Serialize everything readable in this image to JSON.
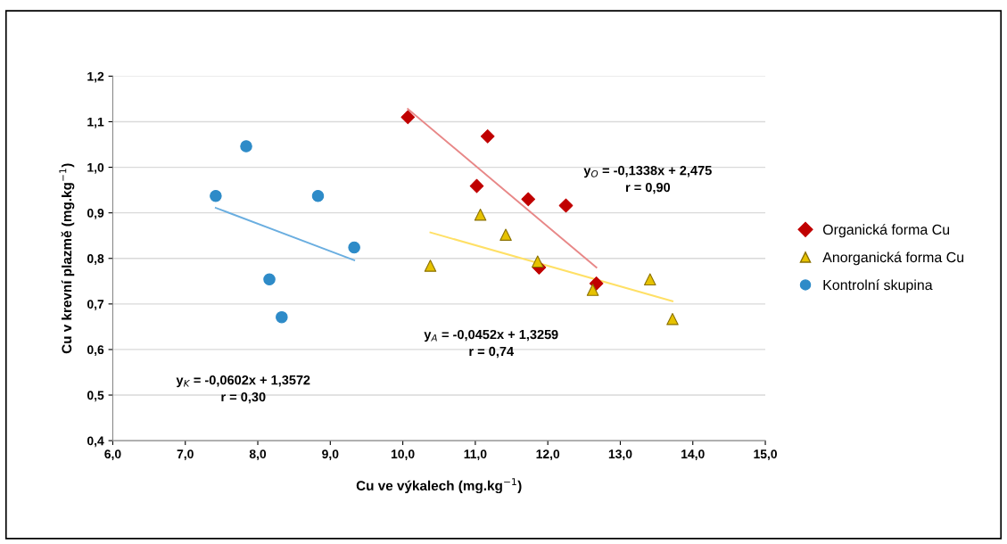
{
  "chart_data": {
    "type": "scatter",
    "xlabel": "Cu ve výkalech (mg.kg$^{−1}$)",
    "ylabel": "Cu v krevní plazmě (mg.kg$^{−1}$)",
    "xlim": [
      6.0,
      15.0
    ],
    "ylim": [
      0.4,
      1.2
    ],
    "xticks": [
      {
        "value": 6,
        "label": "6,0"
      },
      {
        "value": 7,
        "label": "7,0"
      },
      {
        "value": 8,
        "label": "8,0"
      },
      {
        "value": 9,
        "label": "9,0"
      },
      {
        "value": 10,
        "label": "10,0"
      },
      {
        "value": 11,
        "label": "11,0"
      },
      {
        "value": 12,
        "label": "12,0"
      },
      {
        "value": 13,
        "label": "13,0"
      },
      {
        "value": 14,
        "label": "14,0"
      },
      {
        "value": 15,
        "label": "15,0"
      }
    ],
    "yticks": [
      {
        "value": 0.4,
        "label": "0,4"
      },
      {
        "value": 0.5,
        "label": "0,5"
      },
      {
        "value": 0.6,
        "label": "0,6"
      },
      {
        "value": 0.7,
        "label": "0,7"
      },
      {
        "value": 0.8,
        "label": "0,8"
      },
      {
        "value": 0.9,
        "label": "0,9"
      },
      {
        "value": 1.0,
        "label": "1,0"
      },
      {
        "value": 1.1,
        "label": "1,1"
      },
      {
        "value": 1.2,
        "label": "1,2"
      }
    ],
    "grid": "y",
    "legend": "right",
    "series": [
      {
        "name": "Organická forma Cu",
        "marker": "diamond",
        "color": "#c00000",
        "x": [
          10.07,
          11.17,
          11.02,
          11.73,
          12.25,
          11.88,
          12.67
        ],
        "values": [
          1.11,
          1.068,
          0.959,
          0.93,
          0.916,
          0.78,
          0.745
        ]
      },
      {
        "name": "Anorganická forma Cu",
        "marker": "triangle",
        "color": "#e6c200",
        "x": [
          10.38,
          11.07,
          11.42,
          11.86,
          12.62,
          13.41,
          13.72
        ],
        "values": [
          0.784,
          0.896,
          0.852,
          0.793,
          0.731,
          0.754,
          0.667
        ]
      },
      {
        "name": "Kontrolní skupina",
        "marker": "circle",
        "color": "#2e8bc8",
        "x": [
          7.42,
          7.84,
          8.83,
          9.33,
          8.16,
          8.33
        ],
        "values": [
          0.937,
          1.046,
          0.937,
          0.824,
          0.754,
          0.671
        ]
      },
      {
        "type": "line",
        "marker": "none",
        "color": "#e88888",
        "x": [
          10.07,
          12.67
        ],
        "values": [
          1.128,
          0.78
        ]
      },
      {
        "type": "line",
        "marker": "none",
        "color": "#ffe066",
        "x": [
          10.38,
          13.72
        ],
        "values": [
          0.857,
          0.706
        ]
      },
      {
        "type": "line",
        "marker": "none",
        "color": "#6aaee0",
        "x": [
          7.42,
          9.33
        ],
        "values": [
          0.911,
          0.796
        ]
      }
    ],
    "annotations": [
      "y$_{O}$ = -0,1338x + 2,475\nr = 0,90",
      "y$_{A}$ = -0,0452x + 1,3259\nr = 0,74",
      "y$_{K}$ = -0,0602x + 1,3572\nr = 0,30"
    ]
  }
}
